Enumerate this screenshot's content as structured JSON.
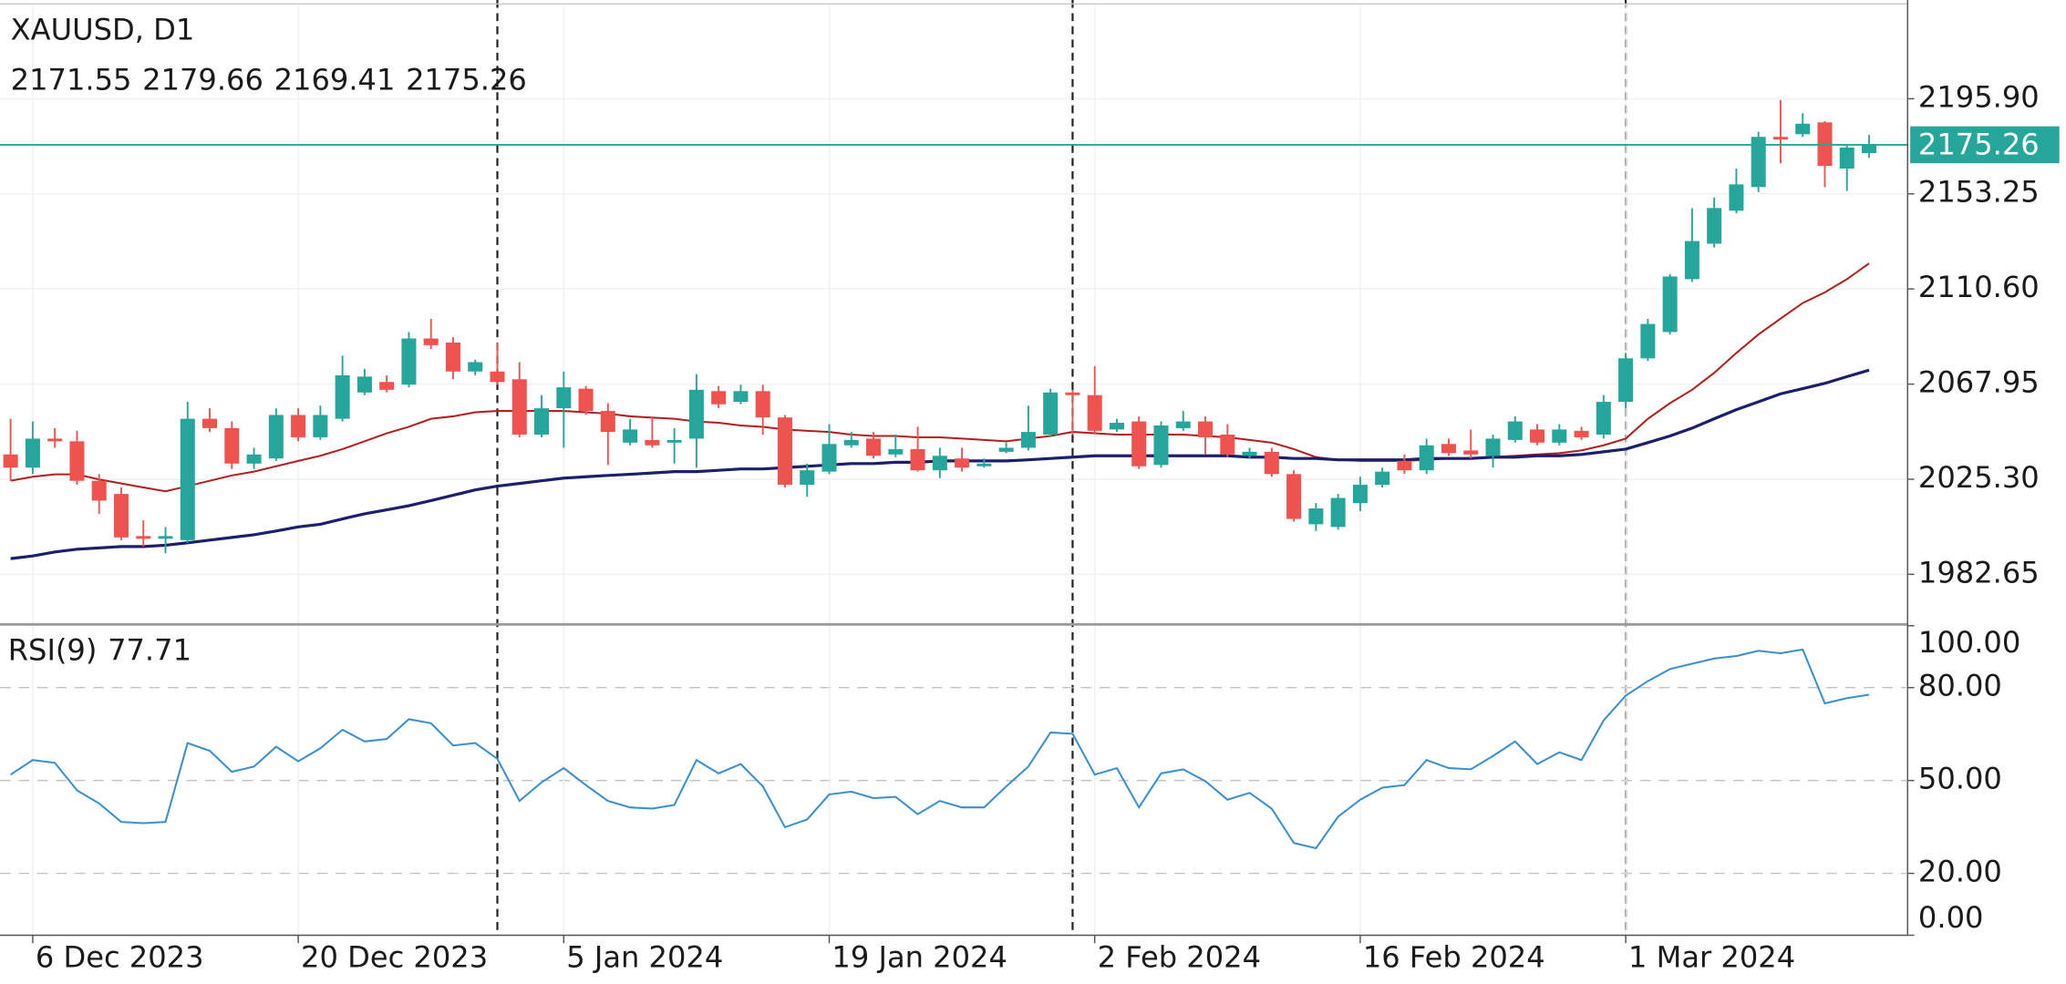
{
  "chart_data": [
    {
      "type": "candlestick",
      "title": "XAUUSD, D1",
      "open": [
        2036.4,
        2030.5,
        2043.5,
        2042.3,
        2024.6,
        2018.7,
        1999.8,
        1998.6,
        1998.0,
        2052.4,
        2048.2,
        2032.3,
        2034.6,
        2054.1,
        2044.1,
        2052.4,
        2064.2,
        2068.9,
        2067.7,
        2088.4,
        2086.6,
        2073.6,
        2073.6,
        2070.1,
        2045.3,
        2057.1,
        2065.9,
        2055.9,
        2041.7,
        2042.9,
        2041.7,
        2043.5,
        2064.8,
        2060.0,
        2064.8,
        2053.0,
        2022.8,
        2028.7,
        2040.5,
        2043.5,
        2036.4,
        2038.8,
        2029.3,
        2034.6,
        2031.1,
        2037.6,
        2039.4,
        2045.3,
        2064.2,
        2063.0,
        2047.6,
        2051.2,
        2031.7,
        2048.2,
        2051.2,
        2045.3,
        2035.8,
        2037.6,
        2027.6,
        2005.1,
        2003.9,
        2014.6,
        2022.8,
        2033.5,
        2029.3,
        2041.1,
        2038.2,
        2035.8,
        2042.9,
        2047.6,
        2041.7,
        2047.0,
        2045.3,
        2060.0,
        2079.5,
        2091.3,
        2115.0,
        2130.9,
        2145.7,
        2156.3,
        2178.8,
        2180.0,
        2185.3,
        2164.6,
        2171.55
      ],
      "high": [
        2052.4,
        2051.2,
        2048.2,
        2047.0,
        2027.6,
        2021.6,
        2006.9,
        2003.9,
        2060.0,
        2057.1,
        2051.2,
        2039.4,
        2057.1,
        2057.1,
        2058.3,
        2080.7,
        2074.8,
        2071.9,
        2091.3,
        2097.2,
        2089.0,
        2078.9,
        2086.6,
        2077.8,
        2063.0,
        2073.6,
        2067.1,
        2059.4,
        2052.4,
        2053.5,
        2048.2,
        2072.4,
        2067.1,
        2067.7,
        2067.7,
        2054.1,
        2032.3,
        2050.0,
        2046.5,
        2046.5,
        2045.3,
        2048.8,
        2039.4,
        2039.4,
        2034.6,
        2041.7,
        2058.3,
        2065.9,
        2065.4,
        2076.0,
        2052.4,
        2053.5,
        2051.2,
        2055.9,
        2053.5,
        2050.0,
        2039.4,
        2039.4,
        2029.3,
        2014.6,
        2018.7,
        2026.4,
        2030.5,
        2036.4,
        2043.5,
        2043.5,
        2047.6,
        2045.3,
        2053.5,
        2050.0,
        2050.0,
        2048.8,
        2063.0,
        2081.9,
        2097.2,
        2117.3,
        2146.9,
        2151.6,
        2164.6,
        2181.1,
        2195.3,
        2189.4,
        2185.9,
        2175.2,
        2179.66
      ],
      "low": [
        2024.6,
        2027.6,
        2039.4,
        2022.8,
        2009.8,
        1998.0,
        1995.1,
        1992.1,
        1996.8,
        2046.5,
        2029.9,
        2029.9,
        2033.5,
        2042.3,
        2042.9,
        2051.2,
        2063.0,
        2064.2,
        2066.5,
        2083.7,
        2070.1,
        2071.9,
        2067.7,
        2044.1,
        2044.1,
        2039.4,
        2054.1,
        2031.7,
        2040.5,
        2039.4,
        2032.3,
        2030.5,
        2057.1,
        2058.9,
        2045.3,
        2021.6,
        2017.5,
        2027.6,
        2039.4,
        2034.6,
        2035.2,
        2028.7,
        2025.8,
        2028.7,
        2030.5,
        2037.0,
        2038.2,
        2044.1,
        2045.3,
        2045.3,
        2046.5,
        2029.9,
        2030.5,
        2047.0,
        2036.4,
        2035.2,
        2034.6,
        2026.4,
        2006.3,
        2002.1,
        2002.7,
        2011.0,
        2021.6,
        2027.6,
        2027.6,
        2035.8,
        2034.6,
        2030.5,
        2041.7,
        2040.5,
        2040.5,
        2042.9,
        2043.5,
        2057.1,
        2078.3,
        2090.2,
        2113.8,
        2129.2,
        2144.5,
        2154.0,
        2167.0,
        2178.8,
        2156.3,
        2154.6,
        2169.41
      ],
      "close": [
        2030.5,
        2043.5,
        2042.3,
        2024.6,
        2015.7,
        1999.2,
        1998.6,
        1999.8,
        2052.4,
        2048.2,
        2032.3,
        2036.4,
        2054.1,
        2044.1,
        2054.1,
        2071.9,
        2071.3,
        2065.4,
        2088.4,
        2085.4,
        2073.6,
        2077.8,
        2068.9,
        2045.3,
        2057.1,
        2066.5,
        2055.9,
        2046.5,
        2047.6,
        2040.5,
        2042.9,
        2065.4,
        2058.9,
        2064.8,
        2053.0,
        2022.8,
        2029.3,
        2041.1,
        2042.9,
        2035.8,
        2038.8,
        2029.3,
        2035.8,
        2030.5,
        2032.3,
        2039.4,
        2046.5,
        2064.2,
        2063.0,
        2047.0,
        2050.6,
        2031.1,
        2049.4,
        2051.2,
        2044.1,
        2036.4,
        2037.6,
        2027.6,
        2007.5,
        2012.2,
        2016.9,
        2022.8,
        2028.7,
        2029.3,
        2040.5,
        2037.0,
        2036.4,
        2043.5,
        2051.2,
        2041.7,
        2047.6,
        2044.1,
        2060.0,
        2079.5,
        2094.9,
        2116.2,
        2132.1,
        2146.9,
        2157.5,
        2178.8,
        2177.6,
        2184.7,
        2165.8,
        2174.0,
        2175.26
      ],
      "up_color": "#26a69a",
      "down_color": "#ef5350",
      "lines": [
        {
          "color": "#b0201f",
          "values": [
            2024.6,
            2026.4,
            2027.5,
            2027.5,
            2025.2,
            2023.4,
            2021.6,
            2019.9,
            2022.2,
            2024.6,
            2027.0,
            2028.7,
            2031.1,
            2033.5,
            2035.8,
            2038.8,
            2042.3,
            2045.9,
            2048.8,
            2052.4,
            2053.5,
            2055.3,
            2055.9,
            2055.9,
            2055.9,
            2055.9,
            2055.3,
            2054.7,
            2053.5,
            2052.9,
            2052.4,
            2051.2,
            2050.6,
            2049.4,
            2048.8,
            2047.6,
            2047.0,
            2046.5,
            2045.3,
            2044.7,
            2044.7,
            2044.1,
            2044.1,
            2043.5,
            2042.9,
            2042.3,
            2043.5,
            2044.7,
            2046.5,
            2045.9,
            2045.3,
            2045.3,
            2045.3,
            2045.3,
            2044.7,
            2044.1,
            2042.9,
            2041.7,
            2038.8,
            2035.2,
            2034.0,
            2033.5,
            2033.5,
            2033.5,
            2034.0,
            2034.6,
            2034.6,
            2035.2,
            2035.8,
            2036.4,
            2037.0,
            2038.2,
            2040.5,
            2043.5,
            2052.4,
            2059.4,
            2065.4,
            2073.0,
            2081.9,
            2090.2,
            2097.3,
            2104.3,
            2109.1,
            2115.0,
            2122.1
          ]
        },
        {
          "color": "#1c1f6b",
          "values": [
            1989.7,
            1990.9,
            1992.7,
            1993.9,
            1994.5,
            1995.1,
            1995.1,
            1995.7,
            1996.8,
            1998.0,
            1999.2,
            2000.4,
            2002.1,
            2003.9,
            2005.1,
            2007.5,
            2009.8,
            2011.6,
            2013.4,
            2015.7,
            2018.1,
            2020.5,
            2022.2,
            2023.4,
            2024.6,
            2025.8,
            2026.4,
            2027.0,
            2027.5,
            2028.1,
            2028.7,
            2028.7,
            2029.3,
            2029.9,
            2029.9,
            2030.5,
            2031.1,
            2031.7,
            2032.3,
            2032.3,
            2032.9,
            2032.9,
            2033.5,
            2033.5,
            2033.5,
            2033.5,
            2034.0,
            2034.6,
            2035.2,
            2035.8,
            2035.8,
            2035.8,
            2035.8,
            2035.8,
            2035.8,
            2035.8,
            2035.2,
            2035.2,
            2034.6,
            2034.6,
            2034.0,
            2034.0,
            2034.0,
            2034.0,
            2034.6,
            2034.6,
            2034.6,
            2035.2,
            2035.2,
            2035.8,
            2035.8,
            2036.4,
            2037.6,
            2038.8,
            2041.7,
            2044.7,
            2048.2,
            2052.4,
            2056.5,
            2060.0,
            2063.6,
            2065.9,
            2068.3,
            2071.3,
            2074.2
          ]
        }
      ],
      "xlim": [
        -0.48,
        85.68
      ],
      "ylim": [
        1960.8,
        2238.4
      ],
      "yticks": [
        {
          "value": 2195.9,
          "label": "2195.90"
        },
        2153.25,
        {
          "value": 2110.6,
          "label": "2110.60"
        },
        2067.95,
        {
          "value": 2025.3,
          "label": "2025.30"
        },
        1982.65
      ],
      "separators": [
        22,
        48,
        73
      ],
      "last_price_color": "#26a69a",
      "grid": true
    },
    {
      "type": "line",
      "title": "RSI(9)",
      "series": [
        {
          "color": "#3a8fd0",
          "values": [
            51.9,
            56.6,
            55.7,
            46.8,
            42.6,
            36.6,
            36.2,
            36.6,
            62.1,
            59.6,
            52.8,
            54.5,
            60.9,
            56.2,
            60.4,
            66.4,
            62.6,
            63.4,
            69.8,
            68.5,
            61.3,
            62.1,
            57.0,
            43.4,
            49.4,
            54.0,
            48.5,
            43.4,
            41.3,
            40.9,
            42.1,
            56.6,
            52.3,
            55.3,
            48.1,
            34.9,
            37.4,
            45.5,
            46.4,
            44.3,
            44.7,
            39.1,
            43.4,
            41.3,
            41.3,
            48.1,
            54.5,
            65.5,
            65.1,
            51.9,
            54.0,
            41.3,
            52.3,
            53.6,
            49.8,
            43.8,
            46.0,
            40.9,
            29.8,
            28.1,
            38.3,
            43.8,
            47.7,
            48.5,
            56.6,
            54.0,
            53.6,
            57.9,
            62.6,
            55.3,
            59.1,
            56.6,
            69.4,
            77.4,
            82.1,
            86.0,
            87.7,
            89.4,
            90.2,
            91.9,
            91.1,
            92.3,
            74.9,
            76.6,
            77.71
          ]
        }
      ],
      "xlim": [
        -0.48,
        85.68
      ],
      "ylim": [
        0,
        100
      ],
      "yticks": [
        {
          "value": 100,
          "label": "100.00"
        },
        {
          "value": 80,
          "label": "80.00"
        },
        {
          "value": 50,
          "label": "50.00"
        },
        {
          "value": 20,
          "label": "20.00"
        },
        {
          "value": 0,
          "label": "0.00"
        }
      ],
      "xticks": [
        {
          "value": 1,
          "label": "6 Dec 2023"
        },
        {
          "value": 13,
          "label": "20 Dec 2023"
        },
        {
          "value": 25,
          "label": "5 Jan 2024"
        },
        {
          "value": 37,
          "label": "19 Jan 2024"
        },
        {
          "value": 49,
          "label": "2 Feb 2024"
        },
        {
          "value": 61,
          "label": "16 Feb 2024"
        },
        {
          "value": 73,
          "label": "1 Mar 2024"
        }
      ]
    }
  ]
}
